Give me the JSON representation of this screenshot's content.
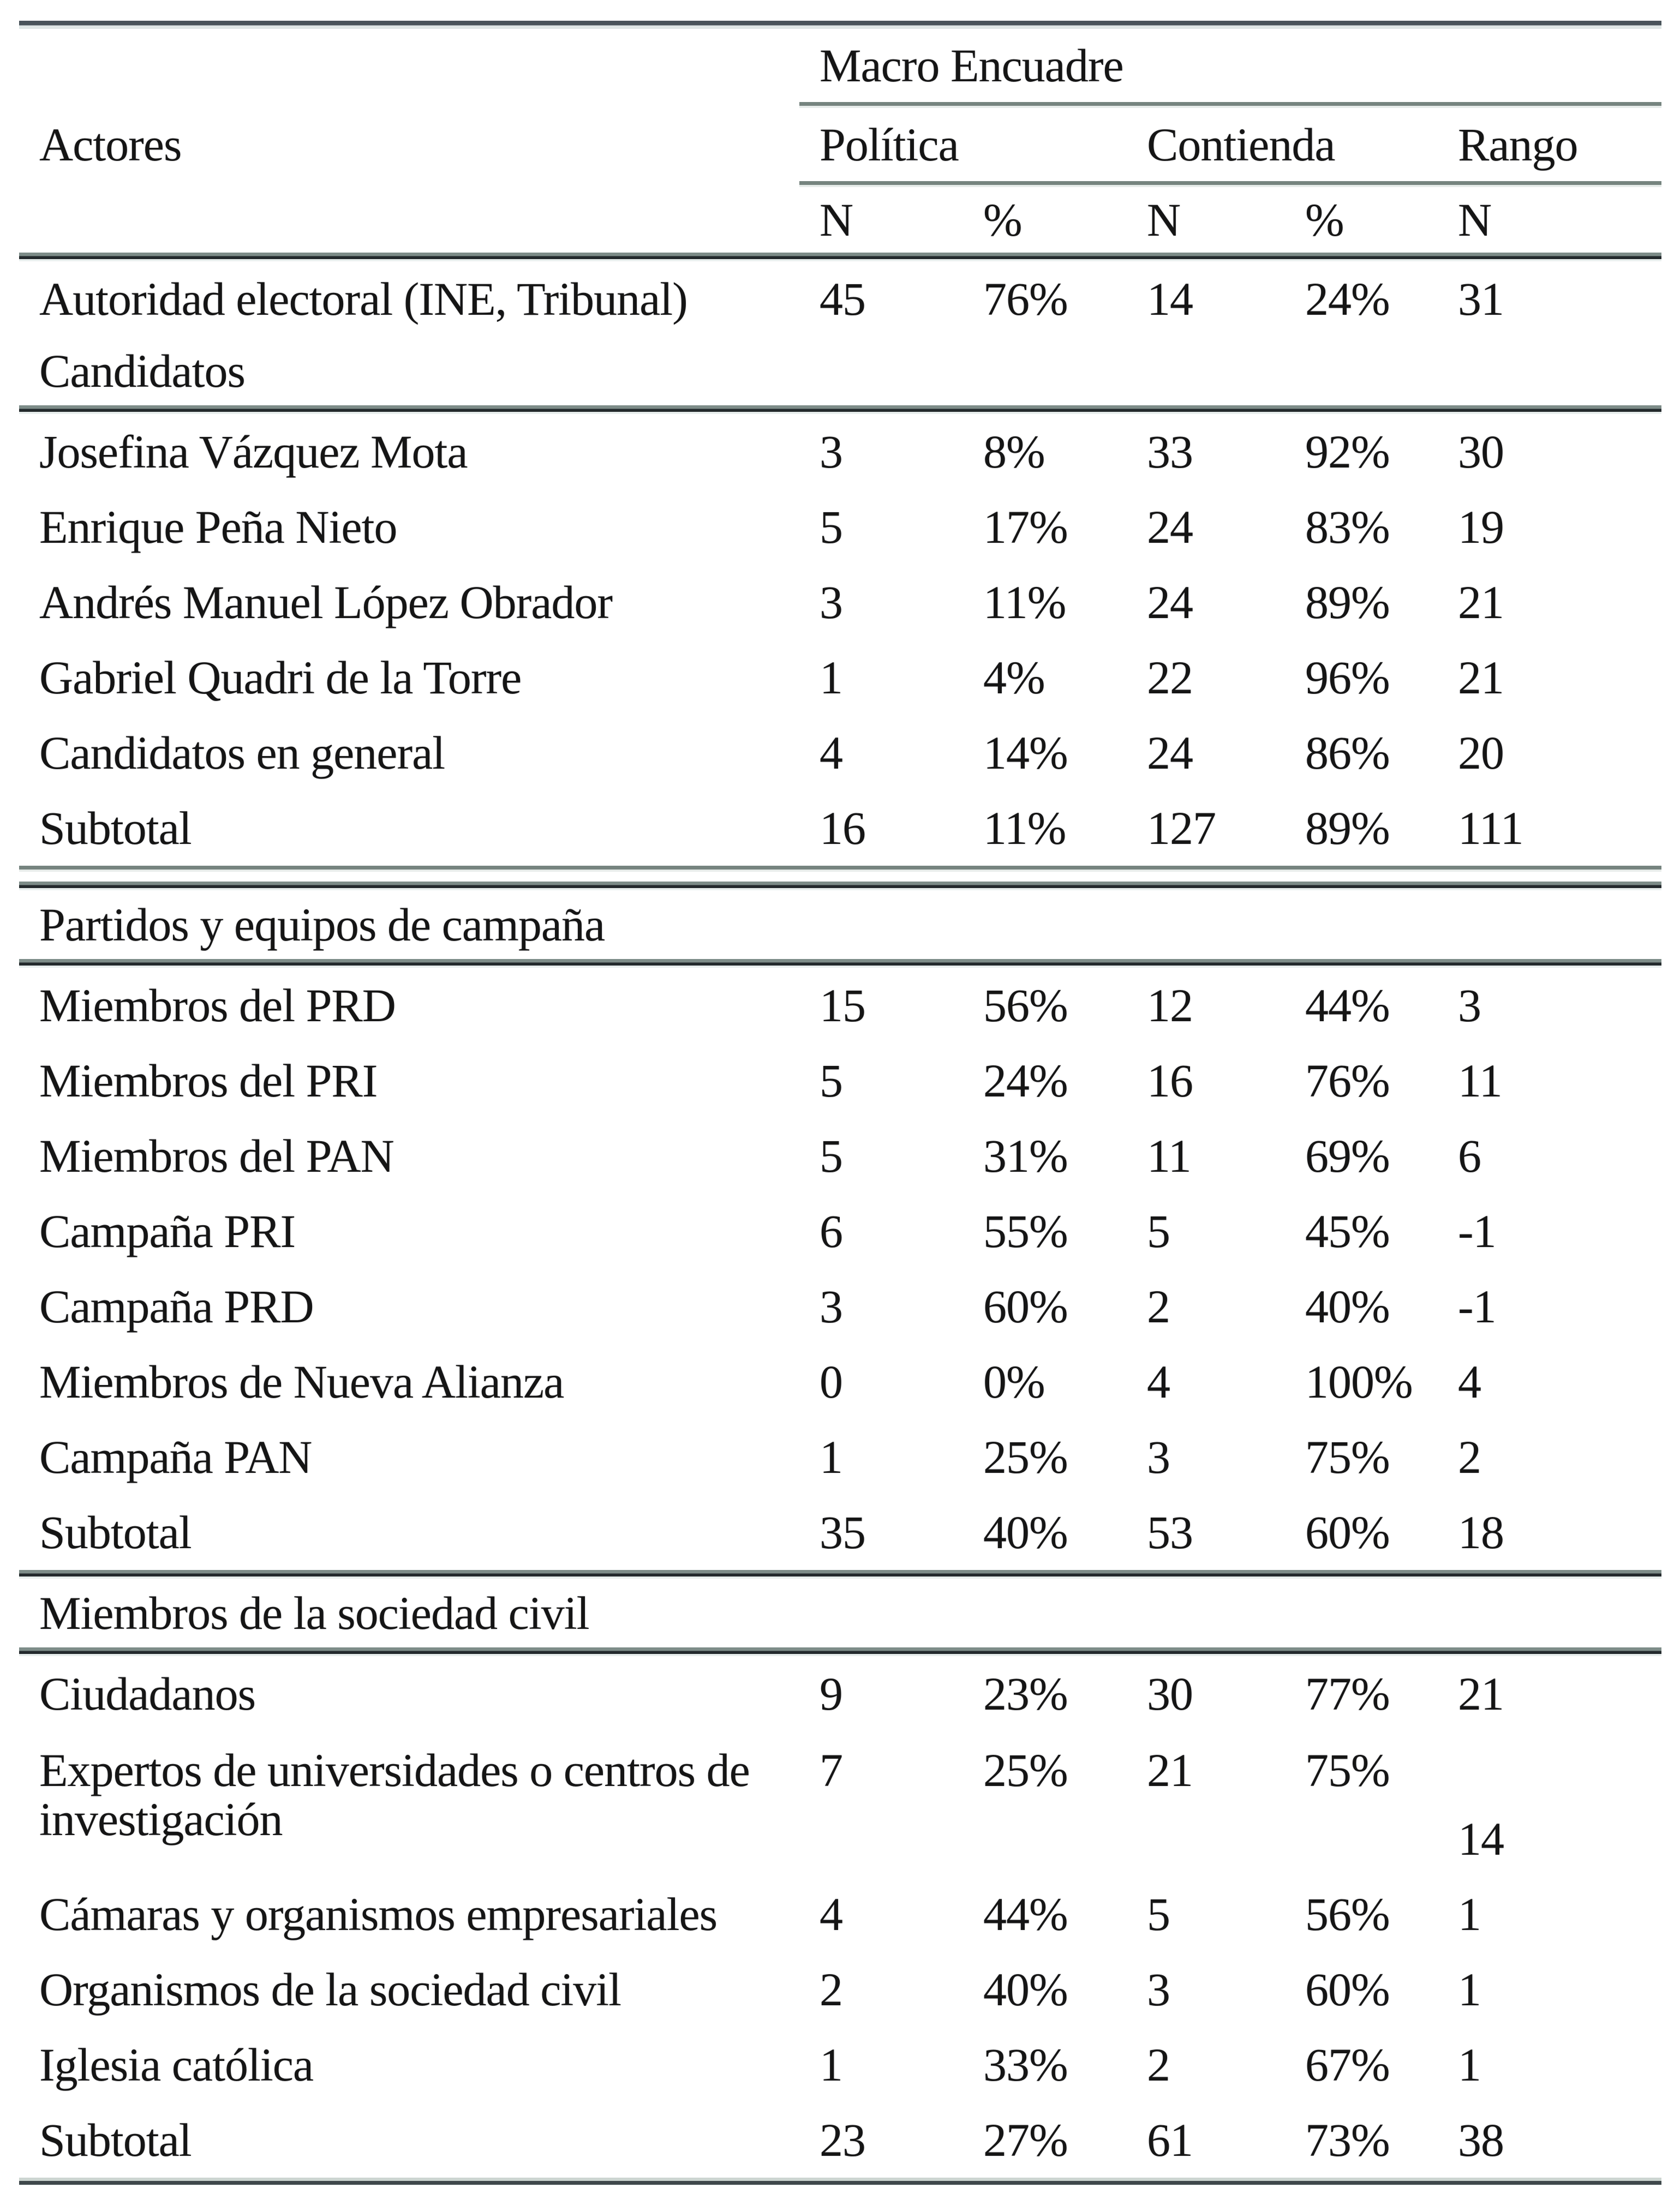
{
  "table": {
    "group_header": "Macro Encuadre",
    "actor_header": "Actores",
    "col_groups": [
      {
        "label": "Política"
      },
      {
        "label": "Contienda"
      },
      {
        "label": "Rango"
      }
    ],
    "sub_headers": [
      "N",
      "%",
      "N",
      "%",
      "N"
    ],
    "body": [
      {
        "type": "row",
        "cells": [
          "Autoridad electoral (INE, Tribunal)",
          "45",
          "76%",
          "14",
          "24%",
          "31"
        ]
      },
      {
        "type": "label",
        "text": "Candidatos"
      },
      {
        "type": "rule",
        "style": "thick"
      },
      {
        "type": "row",
        "cells": [
          "Josefina Vázquez Mota",
          "3",
          "8%",
          "33",
          "92%",
          "30"
        ]
      },
      {
        "type": "row",
        "cells": [
          "Enrique Peña Nieto",
          "5",
          "17%",
          "24",
          "83%",
          "19"
        ]
      },
      {
        "type": "row",
        "cells": [
          "Andrés Manuel López Obrador",
          "3",
          "11%",
          "24",
          "89%",
          "21"
        ]
      },
      {
        "type": "row",
        "cells": [
          "Gabriel Quadri de la Torre",
          "1",
          "4%",
          "22",
          "96%",
          "21"
        ]
      },
      {
        "type": "row",
        "cells": [
          "Candidatos en general",
          "4",
          "14%",
          "24",
          "86%",
          "20"
        ]
      },
      {
        "type": "row",
        "cells": [
          "Subtotal",
          "16",
          "11%",
          "127",
          "89%",
          "111"
        ]
      },
      {
        "type": "rule",
        "style": "thin"
      },
      {
        "type": "gap"
      },
      {
        "type": "rule",
        "style": "thick"
      },
      {
        "type": "label",
        "text": "Partidos y equipos de campaña"
      },
      {
        "type": "rule",
        "style": "thick"
      },
      {
        "type": "row",
        "cells": [
          "Miembros del PRD",
          "15",
          "56%",
          "12",
          "44%",
          "3"
        ]
      },
      {
        "type": "row",
        "cells": [
          "Miembros del PRI",
          "5",
          "24%",
          "16",
          "76%",
          "11"
        ]
      },
      {
        "type": "row",
        "cells": [
          "Miembros del PAN",
          "5",
          "31%",
          "11",
          "69%",
          "6"
        ]
      },
      {
        "type": "row",
        "cells": [
          "Campaña PRI",
          "6",
          "55%",
          "5",
          "45%",
          "-1"
        ]
      },
      {
        "type": "row",
        "cells": [
          "Campaña PRD",
          "3",
          "60%",
          "2",
          "40%",
          "-1"
        ]
      },
      {
        "type": "row",
        "cells": [
          "Miembros de Nueva Alianza",
          "0",
          "0%",
          "4",
          "100%",
          "4"
        ]
      },
      {
        "type": "row",
        "cells": [
          "Campaña PAN",
          "1",
          "25%",
          "3",
          "75%",
          "2"
        ]
      },
      {
        "type": "row",
        "cells": [
          "Subtotal",
          "35",
          "40%",
          "53",
          "60%",
          "18"
        ]
      },
      {
        "type": "rule",
        "style": "thick"
      },
      {
        "type": "label",
        "text": "Miembros de la sociedad civil"
      },
      {
        "type": "rule",
        "style": "thick"
      },
      {
        "type": "row",
        "cells": [
          "Ciudadanos",
          "9",
          "23%",
          "30",
          "77%",
          "21"
        ]
      },
      {
        "type": "row",
        "variant": "tall",
        "cells": [
          "Expertos de universidades o centros de investigación",
          "7",
          "25%",
          "21",
          "75%",
          "14"
        ]
      },
      {
        "type": "row",
        "cells": [
          "Cámaras y organismos empresariales",
          "4",
          "44%",
          "5",
          "56%",
          "1"
        ]
      },
      {
        "type": "row",
        "cells": [
          "Organismos de la sociedad civil",
          "2",
          "40%",
          "3",
          "60%",
          "1"
        ]
      },
      {
        "type": "row",
        "cells": [
          "Iglesia católica",
          "1",
          "33%",
          "2",
          "67%",
          "1"
        ]
      },
      {
        "type": "row",
        "cells": [
          "Subtotal",
          "23",
          "27%",
          "61",
          "73%",
          "38"
        ]
      },
      {
        "type": "rule",
        "style": "bottom"
      }
    ]
  }
}
